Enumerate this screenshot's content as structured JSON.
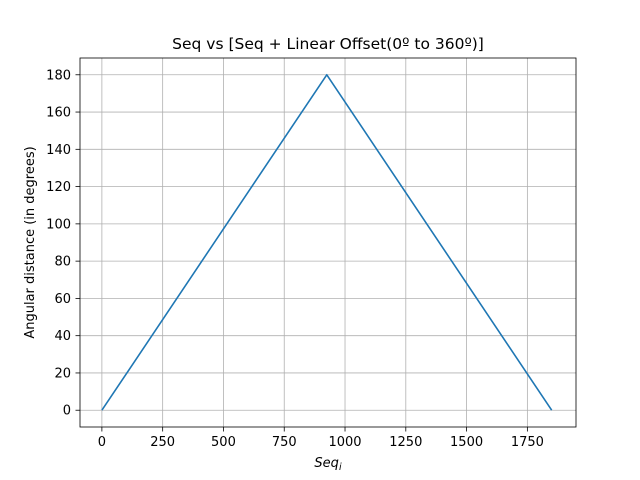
{
  "chart_data": {
    "type": "line",
    "title": "Seq vs [Seq + Linear Offset(0º to 360º)]",
    "xlabel": "Seq",
    "xlabel_subscript": "i",
    "ylabel": "Angular distance (in degrees)",
    "xlim": [
      -90,
      1950
    ],
    "ylim": [
      -9,
      189
    ],
    "xticks": [
      0,
      250,
      500,
      750,
      1000,
      1250,
      1500,
      1750
    ],
    "yticks": [
      0,
      20,
      40,
      60,
      80,
      100,
      120,
      140,
      160,
      180
    ],
    "grid": true,
    "series": [
      {
        "color": "#1f77b4",
        "x": [
          0,
          925,
          1850
        ],
        "y": [
          0,
          180,
          0
        ]
      }
    ]
  }
}
